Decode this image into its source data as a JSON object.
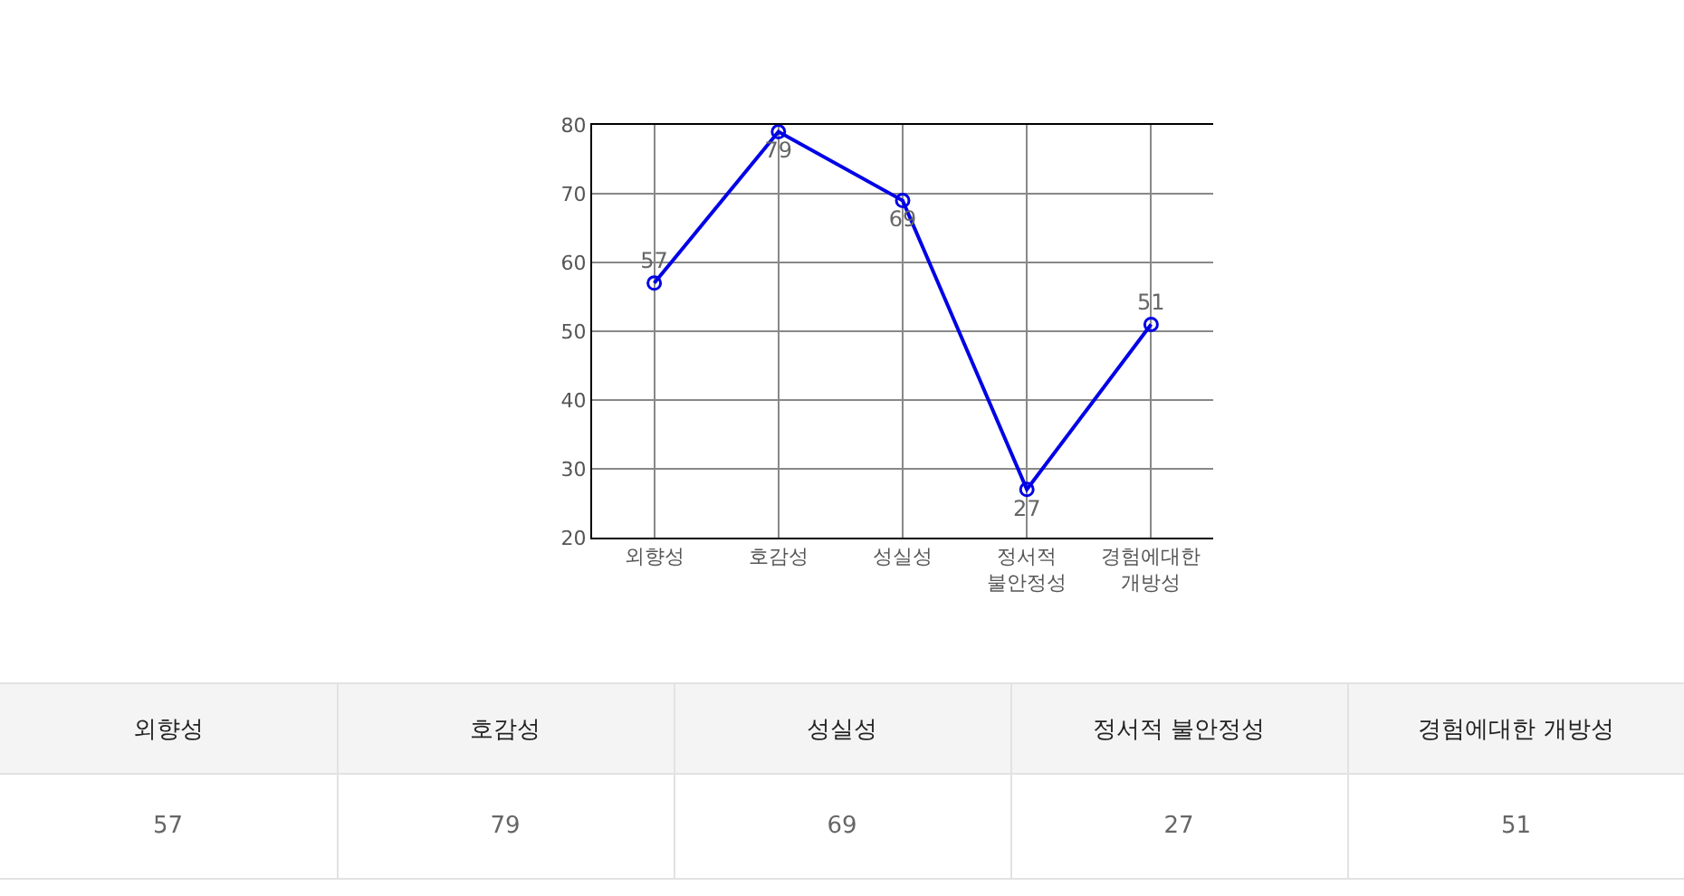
{
  "chart_data": [
    {
      "type": "line",
      "categories": [
        "외향성",
        "호감성",
        "성실성",
        "정서적 불안정성",
        "경험에대한 개방성"
      ],
      "values": [
        57,
        79,
        69,
        27,
        51
      ],
      "color": "#0000e6",
      "ylim": [
        20,
        80
      ],
      "yticks": [
        20,
        30,
        40,
        50,
        60,
        70,
        80
      ],
      "grid": true,
      "marker": "circle",
      "data_labels": true
    },
    {
      "type": "other",
      "categories": [
        "외향성",
        "호감성",
        "성실성",
        "정서적 불안정성",
        "경험에대한 개방성"
      ],
      "values": [
        57,
        79,
        69,
        27,
        51
      ],
      "data_labels": true
    }
  ]
}
